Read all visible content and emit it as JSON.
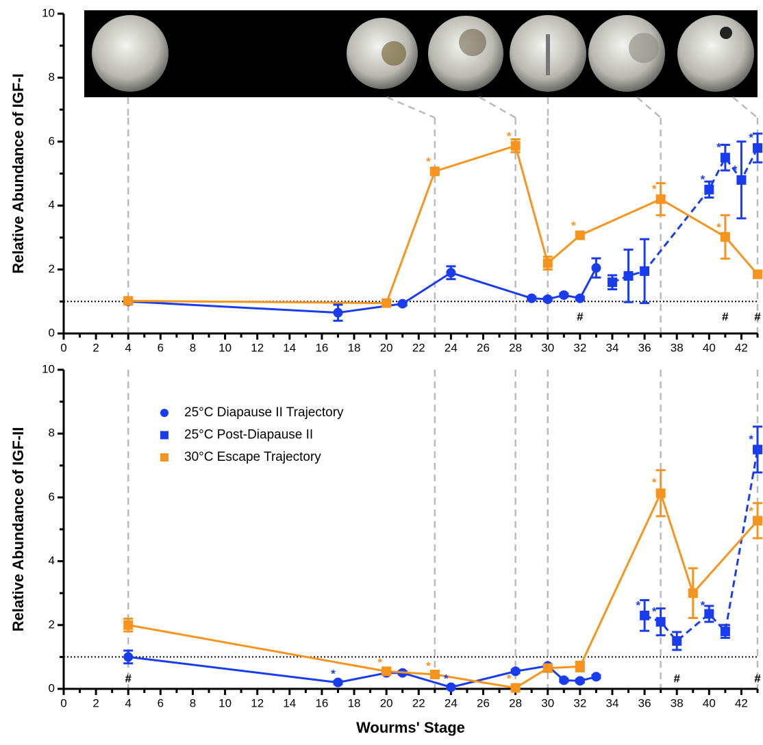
{
  "chart_data": [
    {
      "type": "line",
      "ylabel": "Relative Abundance of IGF-I",
      "xlim": [
        0,
        43
      ],
      "xticks": [
        0,
        2,
        4,
        6,
        8,
        10,
        12,
        14,
        16,
        18,
        20,
        22,
        24,
        26,
        28,
        30,
        32,
        34,
        36,
        38,
        40,
        42
      ],
      "xminorticks": [
        1,
        3,
        5,
        7,
        9,
        11,
        13,
        15,
        17,
        19,
        21,
        23,
        25,
        27,
        29,
        31,
        33,
        35,
        37,
        39,
        41,
        43
      ],
      "ylim": [
        0,
        10
      ],
      "yticks": [
        0,
        2,
        4,
        6,
        8,
        10
      ],
      "yminorticks": [
        1,
        3,
        5,
        7,
        9
      ],
      "reference_line": 1,
      "stage_lines": [
        4,
        23,
        28,
        30,
        37,
        43
      ],
      "series": [
        {
          "name": "25°C Diapause II Trajectory",
          "color": "#1a3cf0",
          "marker": "circle",
          "dashed": false,
          "x": [
            4,
            17,
            21,
            24,
            29,
            30,
            31,
            32,
            33
          ],
          "values": [
            1.0,
            0.65,
            0.93,
            1.9,
            1.1,
            1.07,
            1.2,
            1.1,
            2.05
          ],
          "errors": [
            0.05,
            0.25,
            0.05,
            0.2,
            0.05,
            0.05,
            0.05,
            0.05,
            0.3
          ]
        },
        {
          "name": "25°C Post-Diapause II",
          "color": "#1a3cf0",
          "marker": "square",
          "dashed": true,
          "x": [
            34,
            35,
            36,
            40,
            41,
            42,
            43
          ],
          "values": [
            1.6,
            1.8,
            1.95,
            4.5,
            5.5,
            4.8,
            5.8
          ],
          "errors": [
            0.22,
            0.82,
            1.0,
            0.25,
            0.4,
            1.2,
            0.45
          ]
        },
        {
          "name": "30°C Escape Trajectory",
          "color": "#f7941d",
          "marker": "square",
          "dashed": false,
          "x": [
            4,
            20,
            23,
            28,
            30,
            32,
            37,
            41,
            43
          ],
          "values": [
            1.02,
            0.95,
            5.07,
            5.87,
            2.2,
            3.07,
            4.2,
            3.02,
            1.85
          ],
          "errors": [
            0.05,
            0.05,
            0.05,
            0.2,
            0.2,
            0.1,
            0.5,
            0.68,
            0.05
          ]
        }
      ],
      "annotations": [
        {
          "x": 22.6,
          "y": 5.35,
          "text": "*",
          "color": "#f7941d"
        },
        {
          "x": 27.6,
          "y": 6.15,
          "text": "*",
          "color": "#f7941d"
        },
        {
          "x": 31.6,
          "y": 3.35,
          "text": "*",
          "color": "#f7941d"
        },
        {
          "x": 36.6,
          "y": 4.5,
          "text": "*",
          "color": "#f7941d"
        },
        {
          "x": 40.6,
          "y": 3.3,
          "text": "*",
          "color": "#f7941d"
        },
        {
          "x": 39.6,
          "y": 4.8,
          "text": "*",
          "color": "#1a3cf0"
        },
        {
          "x": 40.6,
          "y": 5.8,
          "text": "*",
          "color": "#1a3cf0"
        },
        {
          "x": 41.6,
          "y": 5.1,
          "text": "*",
          "color": "#1a3cf0"
        },
        {
          "x": 42.6,
          "y": 6.1,
          "text": "*",
          "color": "#1a3cf0"
        },
        {
          "x": 32,
          "y": 0.5,
          "text": "#",
          "color": "#000"
        },
        {
          "x": 41,
          "y": 0.5,
          "text": "#",
          "color": "#000"
        },
        {
          "x": 43,
          "y": 0.5,
          "text": "#",
          "color": "#000"
        }
      ]
    },
    {
      "type": "line",
      "ylabel": "Relative Abundance of IGF-II",
      "xlabel": "Wourms' Stage",
      "xlim": [
        0,
        43
      ],
      "xticks": [
        0,
        2,
        4,
        6,
        8,
        10,
        12,
        14,
        16,
        18,
        20,
        22,
        24,
        26,
        28,
        30,
        32,
        34,
        36,
        38,
        40,
        42
      ],
      "xminorticks": [
        1,
        3,
        5,
        7,
        9,
        11,
        13,
        15,
        17,
        19,
        21,
        23,
        25,
        27,
        29,
        31,
        33,
        35,
        37,
        39,
        41,
        43
      ],
      "ylim": [
        0,
        10
      ],
      "yticks": [
        0,
        2,
        4,
        6,
        8,
        10
      ],
      "yminorticks": [
        1,
        3,
        5,
        7,
        9
      ],
      "reference_line": 1,
      "stage_lines": [
        4,
        23,
        28,
        30,
        37,
        43
      ],
      "legend": "upper left",
      "series": [
        {
          "name": "25°C Diapause II Trajectory",
          "color": "#1a3cf0",
          "marker": "circle",
          "dashed": false,
          "x": [
            4,
            17,
            20,
            21,
            24,
            28,
            30,
            31,
            32,
            33
          ],
          "values": [
            1.0,
            0.2,
            0.5,
            0.5,
            0.05,
            0.55,
            0.72,
            0.27,
            0.25,
            0.38
          ],
          "errors": [
            0.2,
            0.05,
            0.05,
            0.05,
            0.05,
            0.05,
            0.05,
            0.05,
            0.05,
            0.05
          ]
        },
        {
          "name": "25°C Post-Diapause II",
          "color": "#1a3cf0",
          "marker": "square",
          "dashed": true,
          "x": [
            36,
            37,
            38,
            40,
            41,
            43
          ],
          "values": [
            2.3,
            2.1,
            1.5,
            2.35,
            1.8,
            7.5
          ],
          "errors": [
            0.48,
            0.42,
            0.28,
            0.25,
            0.2,
            0.72
          ]
        },
        {
          "name": "30°C Escape Trajectory",
          "color": "#f7941d",
          "marker": "square",
          "dashed": false,
          "x": [
            4,
            20,
            23,
            28,
            30,
            32,
            37,
            39,
            43
          ],
          "values": [
            2.0,
            0.55,
            0.45,
            0.03,
            0.65,
            0.7,
            6.13,
            3.0,
            5.27
          ],
          "errors": [
            0.2,
            0.05,
            0.1,
            0.05,
            0.1,
            0.15,
            0.72,
            0.78,
            0.55
          ]
        }
      ],
      "annotations": [
        {
          "x": 16.7,
          "y": 0.45,
          "text": "*",
          "color": "#1a3cf0"
        },
        {
          "x": 23.7,
          "y": 0.3,
          "text": "*",
          "color": "#1a3cf0"
        },
        {
          "x": 35.6,
          "y": 2.6,
          "text": "*",
          "color": "#1a3cf0"
        },
        {
          "x": 36.6,
          "y": 2.4,
          "text": "*",
          "color": "#1a3cf0"
        },
        {
          "x": 39.6,
          "y": 2.6,
          "text": "*",
          "color": "#1a3cf0"
        },
        {
          "x": 42.6,
          "y": 7.8,
          "text": "*",
          "color": "#1a3cf0"
        },
        {
          "x": 19.6,
          "y": 0.8,
          "text": "*",
          "color": "#f7941d"
        },
        {
          "x": 22.6,
          "y": 0.7,
          "text": "*",
          "color": "#f7941d"
        },
        {
          "x": 27.6,
          "y": 0.3,
          "text": "*",
          "color": "#f7941d"
        },
        {
          "x": 36.6,
          "y": 6.45,
          "text": "*",
          "color": "#f7941d"
        },
        {
          "x": 42.6,
          "y": 5.55,
          "text": "*",
          "color": "#f7941d"
        },
        {
          "x": 4,
          "y": 0.3,
          "text": "#",
          "color": "#000"
        },
        {
          "x": 38,
          "y": 0.3,
          "text": "#",
          "color": "#000"
        },
        {
          "x": 43,
          "y": 0.3,
          "text": "#",
          "color": "#000"
        }
      ]
    }
  ]
}
